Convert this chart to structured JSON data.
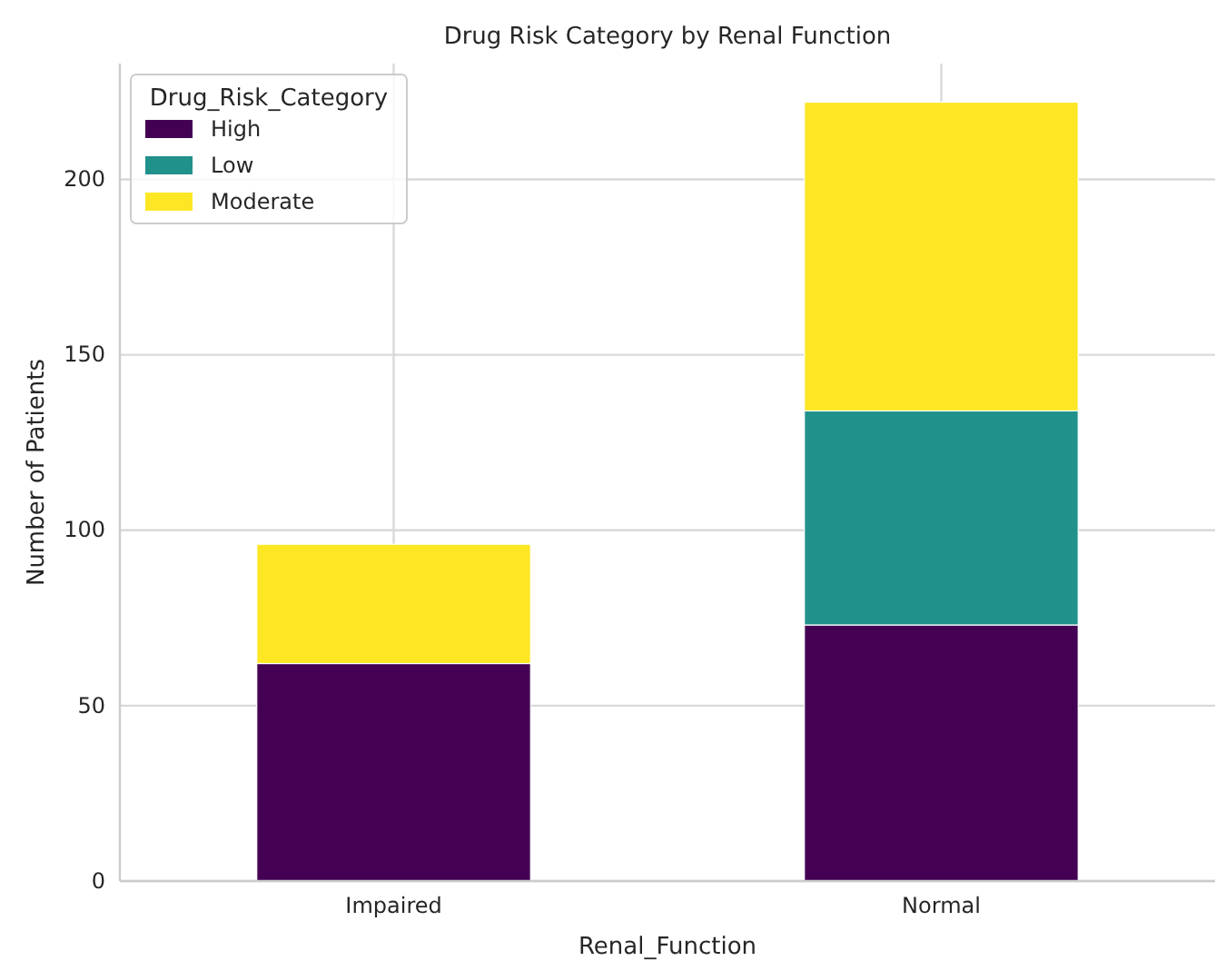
{
  "chart_data": {
    "type": "bar",
    "title": "Drug Risk Category by Renal Function",
    "xlabel": "Renal_Function",
    "ylabel": "Number of Patients",
    "legend_title": "Drug_Risk_Category",
    "categories": [
      "Impaired",
      "Normal"
    ],
    "stacked": true,
    "series": [
      {
        "name": "High",
        "color": "#440154",
        "values": [
          62,
          73
        ]
      },
      {
        "name": "Low",
        "color": "#21918c",
        "values": [
          0,
          61
        ]
      },
      {
        "name": "Moderate",
        "color": "#fde725",
        "values": [
          34,
          88
        ]
      }
    ],
    "ylim": [
      0,
      233
    ],
    "yticks": [
      0,
      50,
      100,
      150,
      200
    ],
    "grid": true,
    "legend": "top left"
  }
}
